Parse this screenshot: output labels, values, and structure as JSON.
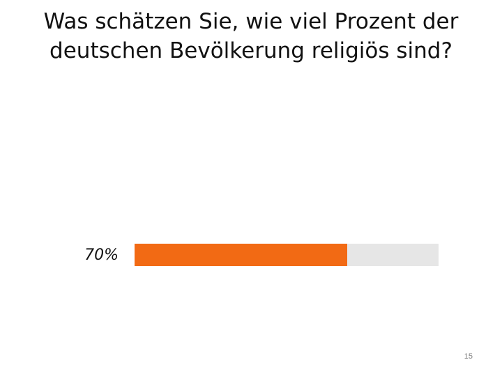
{
  "slide": {
    "title_line1": "Was schätzen Sie, wie viel Prozent der",
    "title_line2": "deutschen Bevölkerung religiös sind?",
    "page_number": "15"
  },
  "result": {
    "label": "70%",
    "value": 70,
    "max": 100,
    "fill_color": "#f26a14",
    "track_color": "#e6e6e6"
  }
}
